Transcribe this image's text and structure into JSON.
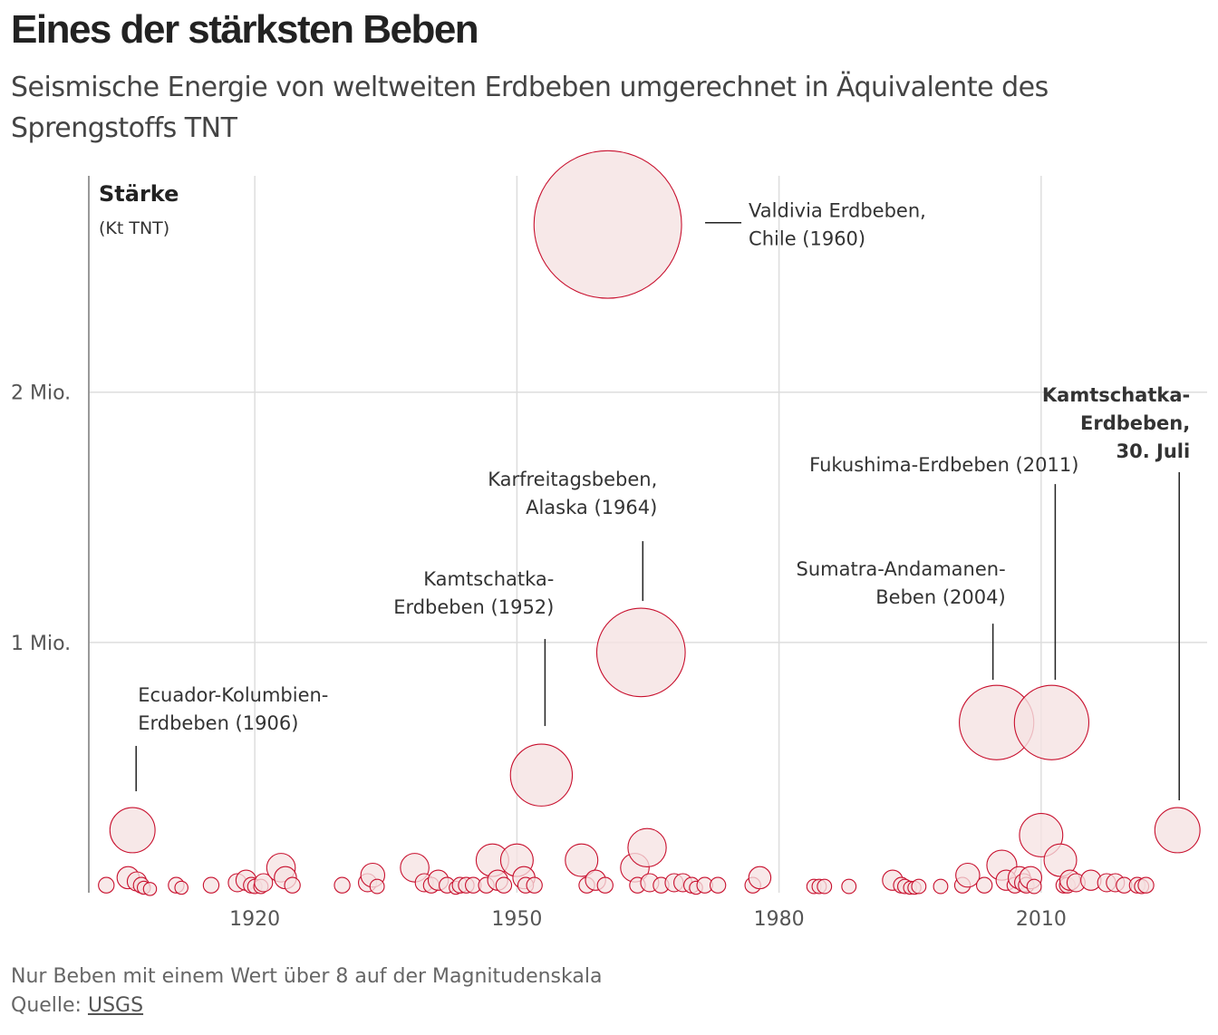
{
  "chart_data": {
    "type": "bubble",
    "title": "Eines der stärksten Beben",
    "subtitle": "Seismische Energie von weltweiten Erdbeben umgerechnet in Äquivalente des Sprengstoffs TNT",
    "ylabel": "Stärke",
    "ylabel_unit": "(Kt TNT)",
    "x_ticks": [
      {
        "value": 1920,
        "label": "1920"
      },
      {
        "value": 1950,
        "label": "1950"
      },
      {
        "value": 1980,
        "label": "1980"
      },
      {
        "value": 2010,
        "label": "2010"
      }
    ],
    "y_ticks": [
      {
        "value": 1000000,
        "label": "1 Mio."
      },
      {
        "value": 2000000,
        "label": "2 Mio."
      }
    ],
    "xlim": [
      1901,
      2029
    ],
    "ylim": [
      0,
      2850000
    ],
    "annotated": [
      {
        "year": 1906.0,
        "value": 250000,
        "label": [
          "Ecuador-Kolumbien-",
          "Erdbeben (1906)"
        ],
        "align": "start",
        "bold": false
      },
      {
        "year": 1952.8,
        "value": 470000,
        "label": [
          "Kamtschatka-",
          "Erdbeben (1952)"
        ],
        "align": "end",
        "bold": false
      },
      {
        "year": 1960.4,
        "value": 2670000,
        "label": [
          "Valdivia Erdbeben,",
          "Chile (1960)"
        ],
        "align": "start",
        "bold": false
      },
      {
        "year": 1964.2,
        "value": 960000,
        "label": [
          "Karfreitagsbeben,",
          "Alaska (1964)"
        ],
        "align": "end",
        "bold": false
      },
      {
        "year": 2004.9,
        "value": 680000,
        "label": [
          "Sumatra-Andamanen-",
          "Beben (2004)"
        ],
        "align": "end",
        "bold": false
      },
      {
        "year": 2011.2,
        "value": 680000,
        "label": [
          "Fukushima-Erdbeben (2011)"
        ],
        "align": "end",
        "bold": false
      },
      {
        "year": 2025.6,
        "value": 250000,
        "label": [
          "Kamtschatka-",
          "Erdbeben,",
          "30. Juli"
        ],
        "align": "end",
        "bold": true
      }
    ],
    "other_quakes": [
      {
        "year": 1903.0,
        "value": 30000
      },
      {
        "year": 1905.5,
        "value": 60000
      },
      {
        "year": 1906.5,
        "value": 45000
      },
      {
        "year": 1907.0,
        "value": 30000
      },
      {
        "year": 1907.3,
        "value": 20000
      },
      {
        "year": 1908.0,
        "value": 15000
      },
      {
        "year": 1911.0,
        "value": 30000
      },
      {
        "year": 1911.6,
        "value": 20000
      },
      {
        "year": 1915.0,
        "value": 30000
      },
      {
        "year": 1918.0,
        "value": 40000
      },
      {
        "year": 1919.0,
        "value": 50000
      },
      {
        "year": 1919.6,
        "value": 30000
      },
      {
        "year": 1920.0,
        "value": 25000
      },
      {
        "year": 1920.7,
        "value": 25000
      },
      {
        "year": 1921.0,
        "value": 40000
      },
      {
        "year": 1923.0,
        "value": 100000
      },
      {
        "year": 1923.5,
        "value": 60000
      },
      {
        "year": 1924.3,
        "value": 30000
      },
      {
        "year": 1930.0,
        "value": 30000
      },
      {
        "year": 1932.9,
        "value": 40000
      },
      {
        "year": 1933.5,
        "value": 70000
      },
      {
        "year": 1934.0,
        "value": 25000
      },
      {
        "year": 1938.3,
        "value": 100000
      },
      {
        "year": 1939.4,
        "value": 40000
      },
      {
        "year": 1940.2,
        "value": 30000
      },
      {
        "year": 1941.0,
        "value": 50000
      },
      {
        "year": 1942.0,
        "value": 30000
      },
      {
        "year": 1943.0,
        "value": 20000
      },
      {
        "year": 1943.5,
        "value": 30000
      },
      {
        "year": 1944.2,
        "value": 30000
      },
      {
        "year": 1945.0,
        "value": 30000
      },
      {
        "year": 1946.5,
        "value": 30000
      },
      {
        "year": 1947.2,
        "value": 130000
      },
      {
        "year": 1947.8,
        "value": 50000
      },
      {
        "year": 1948.5,
        "value": 30000
      },
      {
        "year": 1950.0,
        "value": 130000
      },
      {
        "year": 1950.8,
        "value": 60000
      },
      {
        "year": 1951.0,
        "value": 30000
      },
      {
        "year": 1952.0,
        "value": 30000
      },
      {
        "year": 1957.4,
        "value": 130000
      },
      {
        "year": 1958.0,
        "value": 30000
      },
      {
        "year": 1959.0,
        "value": 50000
      },
      {
        "year": 1960.1,
        "value": 30000
      },
      {
        "year": 1963.5,
        "value": 100000
      },
      {
        "year": 1963.8,
        "value": 30000
      },
      {
        "year": 1964.9,
        "value": 180000
      },
      {
        "year": 1965.2,
        "value": 40000
      },
      {
        "year": 1966.5,
        "value": 30000
      },
      {
        "year": 1968.0,
        "value": 40000
      },
      {
        "year": 1969.0,
        "value": 40000
      },
      {
        "year": 1970.0,
        "value": 30000
      },
      {
        "year": 1970.5,
        "value": 20000
      },
      {
        "year": 1971.5,
        "value": 30000
      },
      {
        "year": 1973.0,
        "value": 30000
      },
      {
        "year": 1977.0,
        "value": 30000
      },
      {
        "year": 1977.8,
        "value": 60000
      },
      {
        "year": 1984.0,
        "value": 25000
      },
      {
        "year": 1984.6,
        "value": 25000
      },
      {
        "year": 1985.2,
        "value": 25000
      },
      {
        "year": 1988.0,
        "value": 25000
      },
      {
        "year": 1993.0,
        "value": 50000
      },
      {
        "year": 1994.0,
        "value": 30000
      },
      {
        "year": 1994.4,
        "value": 25000
      },
      {
        "year": 1995.0,
        "value": 20000
      },
      {
        "year": 1995.5,
        "value": 20000
      },
      {
        "year": 1996.0,
        "value": 25000
      },
      {
        "year": 1998.5,
        "value": 25000
      },
      {
        "year": 2001.0,
        "value": 30000
      },
      {
        "year": 2001.6,
        "value": 70000
      },
      {
        "year": 2003.5,
        "value": 30000
      },
      {
        "year": 2005.5,
        "value": 110000
      },
      {
        "year": 2006.0,
        "value": 50000
      },
      {
        "year": 2007.0,
        "value": 30000
      },
      {
        "year": 2007.5,
        "value": 60000
      },
      {
        "year": 2008.0,
        "value": 40000
      },
      {
        "year": 2008.3,
        "value": 30000
      },
      {
        "year": 2008.8,
        "value": 60000
      },
      {
        "year": 2009.2,
        "value": 25000
      },
      {
        "year": 2010.0,
        "value": 230000
      },
      {
        "year": 2012.2,
        "value": 130000
      },
      {
        "year": 2012.6,
        "value": 30000
      },
      {
        "year": 2013.0,
        "value": 30000
      },
      {
        "year": 2013.3,
        "value": 50000
      },
      {
        "year": 2014.0,
        "value": 40000
      },
      {
        "year": 2015.7,
        "value": 50000
      },
      {
        "year": 2017.5,
        "value": 40000
      },
      {
        "year": 2018.5,
        "value": 40000
      },
      {
        "year": 2019.5,
        "value": 30000
      },
      {
        "year": 2021.0,
        "value": 30000
      },
      {
        "year": 2021.5,
        "value": 25000
      },
      {
        "year": 2022.0,
        "value": 30000
      }
    ],
    "colors": {
      "stroke": "#c8102e",
      "fill": "#f5e2e2",
      "grid": "#dddddd",
      "axis": "#999999",
      "text": "#333333"
    }
  },
  "footer": {
    "note": "Nur Beben mit einem Wert über 8 auf der Magnitudenskala",
    "source_prefix": "Quelle:",
    "source_link": "USGS"
  }
}
